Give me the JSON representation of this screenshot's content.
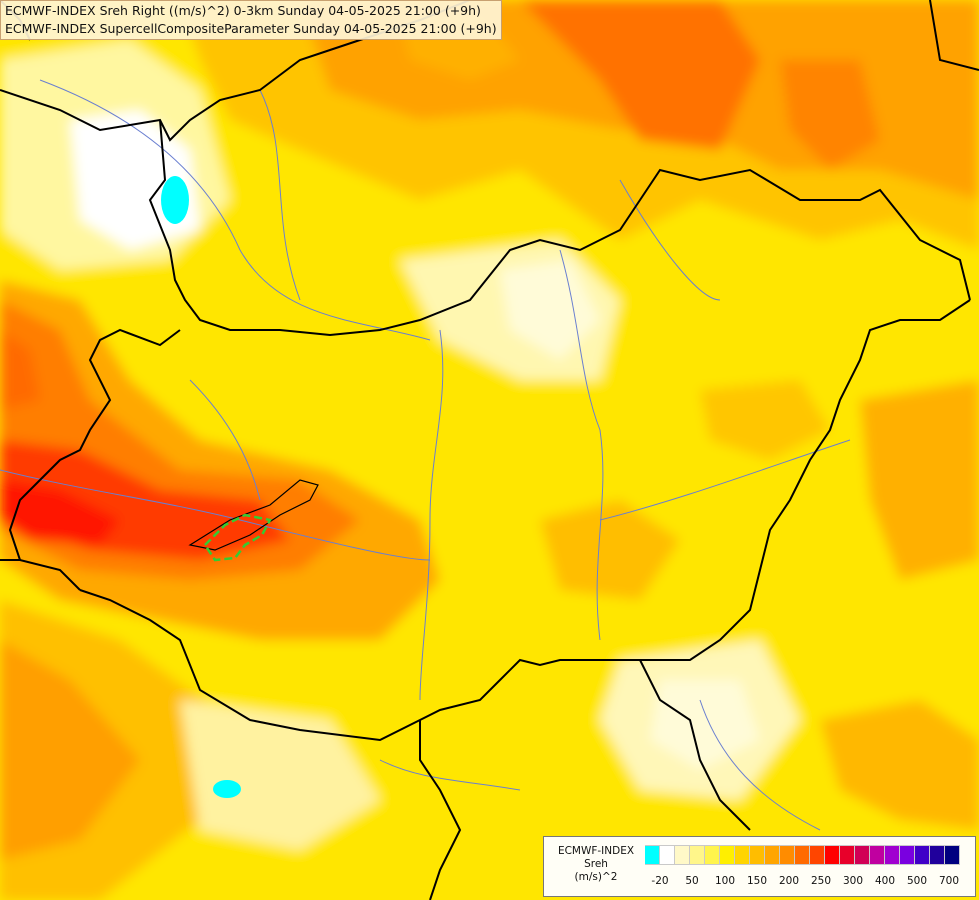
{
  "titles": {
    "line1": "ECMWF-INDEX Sreh Right ((m/s)^2) 0-3km Sunday 04-05-2025 21:00 (+9h)",
    "line2": "ECMWF-INDEX SupercellCompositeParameter Sunday 04-05-2025 21:00 (+9h)"
  },
  "legend": {
    "title_line1": "ECMWF-INDEX",
    "title_line2": "Sreh",
    "title_line3": "(m/s)^2",
    "colors": [
      "#00ffff",
      "#ffffff",
      "#fff9c8",
      "#fff68a",
      "#fff44c",
      "#ffef00",
      "#ffd400",
      "#ffbd00",
      "#ffa500",
      "#ff8c00",
      "#ff6a00",
      "#ff4500",
      "#ff0000",
      "#e8002a",
      "#d10055",
      "#c000a0",
      "#a000d0",
      "#7a00e0",
      "#4000c8",
      "#20009c",
      "#000080"
    ],
    "tick_labels": [
      "-20",
      "50",
      "100",
      "150",
      "200",
      "250",
      "300",
      "400",
      "500",
      "700"
    ]
  }
}
